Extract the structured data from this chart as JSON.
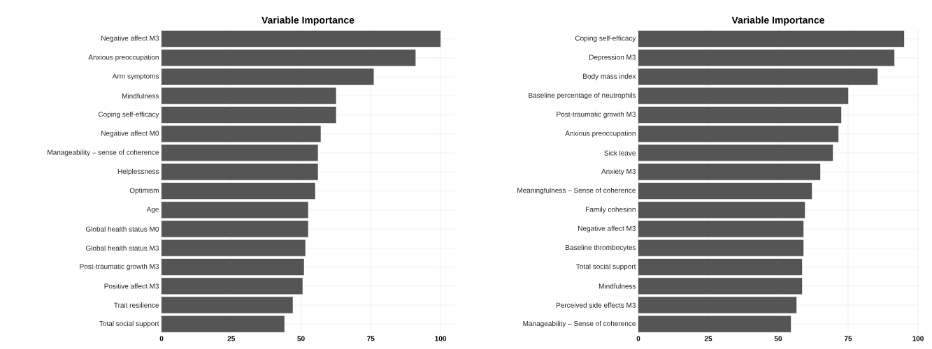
{
  "chart_data": [
    {
      "type": "bar",
      "orientation": "horizontal",
      "title": "Variable Importance",
      "categories": [
        "Negative affect M3",
        "Anxious preoccupation",
        "Arm symptoms",
        "Mindfulness",
        "Coping self-efficacy",
        "Negative affect M0",
        "Manageability – sense of coherence",
        "Helplessness",
        "Optimism",
        "Age",
        "Global health status M0",
        "Global health status M3",
        "Post-traumatic growth M3",
        "Positive affect M3",
        "Trait resilience",
        "Total social support"
      ],
      "values": [
        100,
        91,
        76,
        62.5,
        62.5,
        57,
        56,
        56,
        55,
        52.5,
        52.5,
        51.5,
        51,
        50.5,
        47,
        44
      ],
      "color": "#555555",
      "xlim": [
        0,
        105
      ],
      "xticks": [
        0,
        25,
        50,
        75,
        100
      ],
      "grid": true
    },
    {
      "type": "bar",
      "orientation": "horizontal",
      "title": "Variable Importance",
      "categories": [
        "Coping self-efficacy",
        "Depression M3",
        "Body mass index",
        "Baseline percentage of neutrophils",
        "Post-traumatic growth M3",
        "Anxious preoccupation",
        "Sick leave",
        "Anxiety M3",
        "Meaningfulness – Sense of coherence",
        "Family cohesion",
        "Negative affect M3",
        "Baseline thrombocytes",
        "Total social support",
        "Mindfulness",
        "Perceived side effects M3",
        "Manageability – Sense of coherence"
      ],
      "values": [
        95,
        91.5,
        85.5,
        75,
        72.5,
        71.5,
        69.5,
        65,
        62,
        59.5,
        59,
        59,
        58.5,
        58.5,
        56.5,
        54.5
      ],
      "color": "#555555",
      "xlim": [
        0,
        100
      ],
      "xticks": [
        0,
        25,
        50,
        75,
        100
      ],
      "grid": true
    }
  ]
}
